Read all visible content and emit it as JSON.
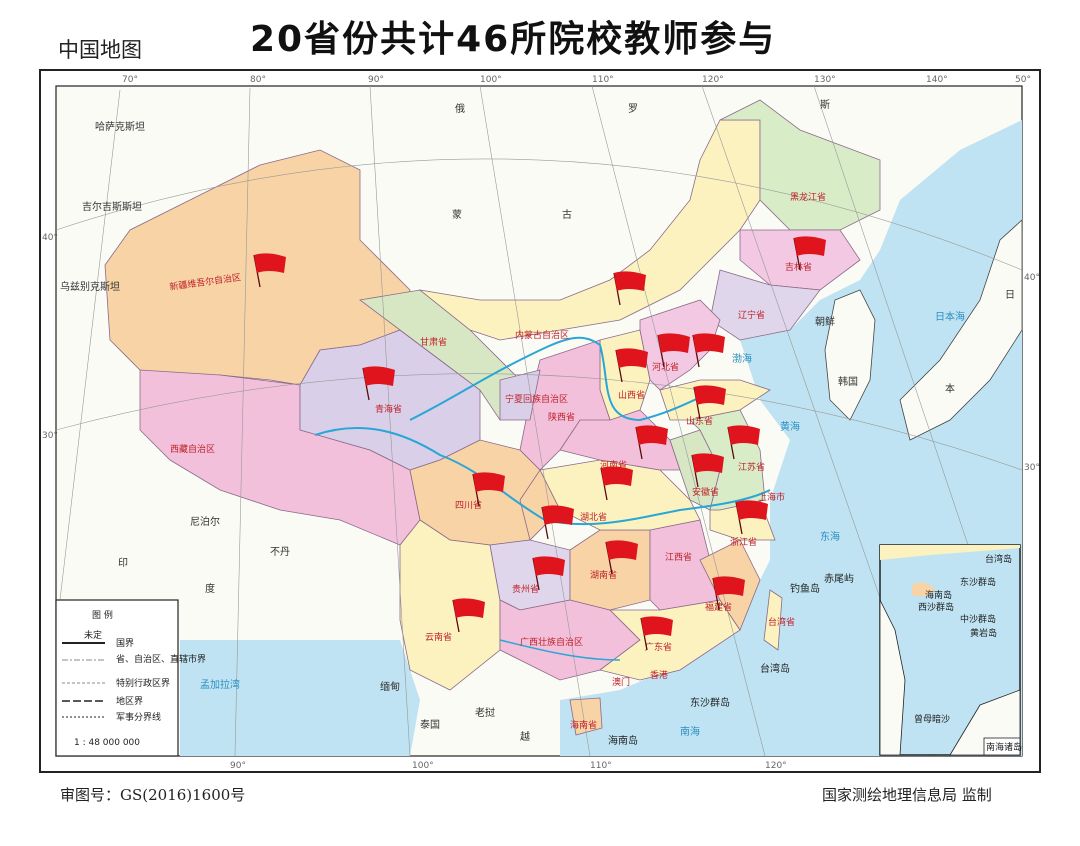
{
  "header": {
    "title": "20省份共计46所院校教师参与",
    "map_name": "中国地图"
  },
  "footer": {
    "approval_no": "审图号：GS(2016)1600号",
    "publisher": "国家测绘地理信息局 监制"
  },
  "ticks": {
    "top": [
      "70°",
      "80°",
      "90°",
      "100°",
      "110°",
      "120°",
      "130°",
      "140°",
      "50°"
    ],
    "bottom": [
      "90°",
      "100°",
      "110°",
      "120°"
    ],
    "left": [
      "40°",
      "30°"
    ],
    "right": [
      "40°",
      "30°"
    ]
  },
  "countries": [
    "哈萨克斯坦",
    "俄",
    "罗",
    "斯",
    "蒙",
    "古",
    "朝鲜",
    "韩国",
    "日",
    "本",
    "印",
    "度",
    "尼泊尔",
    "不丹",
    "孟加拉湾",
    "缅甸",
    "老挝",
    "越",
    "泰国",
    "吉尔吉斯斯坦",
    "乌兹别克斯坦"
  ],
  "seas": [
    "日本海",
    "黄海",
    "东海",
    "南海",
    "渤海"
  ],
  "islands": [
    "台湾岛",
    "海南岛",
    "东沙群岛",
    "钓鱼岛",
    "赤尾屿"
  ],
  "provinces": [
    "新疆维吾尔自治区",
    "西藏自治区",
    "青海省",
    "甘肃省",
    "内蒙古自治区",
    "黑龙江省",
    "吉林省",
    "辽宁省",
    "四川省",
    "云南省",
    "贵州省",
    "广西壮族自治区",
    "湖南省",
    "江西省",
    "广东省",
    "湖北省",
    "河南省",
    "山东省",
    "江苏省",
    "浙江省",
    "福建省",
    "山西省",
    "陕西省",
    "河北省",
    "安徽省",
    "台湾省",
    "海南省",
    "宁夏回族自治区",
    "北京",
    "上海市",
    "澳门",
    "香港"
  ],
  "inset": {
    "title": "南海诸岛",
    "labels": [
      "台湾岛",
      "东沙群岛",
      "海南岛",
      "西沙群岛",
      "中沙群岛",
      "黄岩岛",
      "曾母暗沙"
    ]
  },
  "legend": {
    "title": "图 例",
    "items": [
      "国界",
      "省、自治区、直辖市界",
      "特别行政区界",
      "地区界",
      "军事分界线"
    ],
    "undetermined": "未定",
    "scale": "1 : 48 000 000"
  },
  "colors": {
    "flag": "#e0141c",
    "sea": "#bfe3f2",
    "river": "#2aa6d6",
    "border": "#222222"
  }
}
